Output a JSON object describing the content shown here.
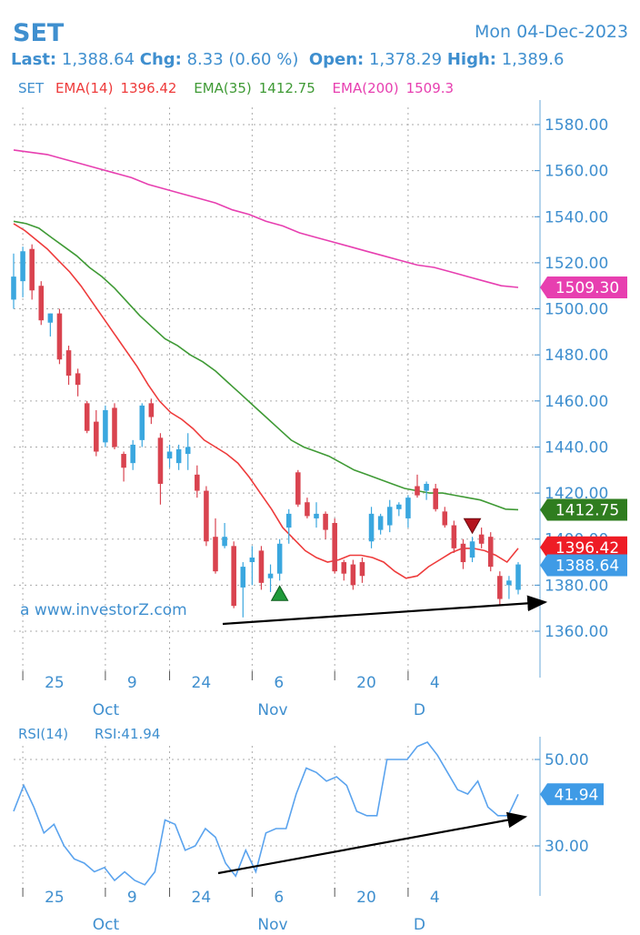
{
  "header": {
    "symbol": "SET",
    "date": "Mon 04-Dec-2023",
    "last_label": "Last:",
    "last_value": "1,388.64",
    "chg_label": "Chg:",
    "chg_value": "8.33 (0.60 %)",
    "open_label": "Open:",
    "open_value": "1,378.29",
    "high_label": "High:",
    "high_value": "1,389.6"
  },
  "legend": {
    "set": "SET",
    "ema14_label": "EMA(14)",
    "ema14_value": "1396.42",
    "ema35_label": "EMA(35)",
    "ema35_value": "1412.75",
    "ema200_label": "EMA(200)",
    "ema200_value": "1509.3"
  },
  "watermark": "a www.investorZ.com",
  "colors": {
    "up": "#3aa7df",
    "down": "#d9434f",
    "ema14": "#ee3b3b",
    "ema35": "#3f9a35",
    "ema200": "#e73fb0",
    "rsi": "#5aa3ee",
    "axis_text": "#3f8fcf",
    "arrow": "#000000"
  },
  "chart_data": [
    {
      "type": "candlestick",
      "title": "SET",
      "ylim": [
        1360,
        1580
      ],
      "yticks": [
        "1580.00",
        "1560.00",
        "1540.00",
        "1520.00",
        "1500.00",
        "1480.00",
        "1460.00",
        "1440.00",
        "1420.00",
        "1400.00",
        "1380.00",
        "1360.00"
      ],
      "xticks": [
        {
          "label": "25",
          "month": "Oct",
          "index": 1
        },
        {
          "label": "9",
          "index": 10
        },
        {
          "label": "24",
          "index": 17
        },
        {
          "label": "6",
          "month": "Nov",
          "index": 26
        },
        {
          "label": "20",
          "index": 35
        },
        {
          "label": "4",
          "month": "D",
          "index": 43
        }
      ],
      "month_labels": [
        {
          "label": "Oct",
          "index": 8
        },
        {
          "label": "Nov",
          "index": 26
        },
        {
          "label": "D",
          "index": 43
        }
      ],
      "candles": [
        {
          "o": 1504,
          "h": 1524,
          "l": 1500,
          "c": 1514
        },
        {
          "o": 1512,
          "h": 1527,
          "l": 1505,
          "c": 1525
        },
        {
          "o": 1526,
          "h": 1528,
          "l": 1504,
          "c": 1508
        },
        {
          "o": 1510,
          "h": 1512,
          "l": 1493,
          "c": 1495
        },
        {
          "o": 1494,
          "h": 1498,
          "l": 1488,
          "c": 1498
        },
        {
          "o": 1498,
          "h": 1500,
          "l": 1476,
          "c": 1478
        },
        {
          "o": 1482,
          "h": 1484,
          "l": 1467,
          "c": 1471
        },
        {
          "o": 1472,
          "h": 1474,
          "l": 1462,
          "c": 1467
        },
        {
          "o": 1459,
          "h": 1460,
          "l": 1446,
          "c": 1447
        },
        {
          "o": 1451,
          "h": 1456,
          "l": 1436,
          "c": 1438
        },
        {
          "o": 1442,
          "h": 1458,
          "l": 1440,
          "c": 1456
        },
        {
          "o": 1457,
          "h": 1459,
          "l": 1439,
          "c": 1440
        },
        {
          "o": 1437,
          "h": 1438,
          "l": 1425,
          "c": 1431
        },
        {
          "o": 1433,
          "h": 1443,
          "l": 1430,
          "c": 1441
        },
        {
          "o": 1443,
          "h": 1459,
          "l": 1440,
          "c": 1458
        },
        {
          "o": 1459,
          "h": 1461,
          "l": 1450,
          "c": 1453
        },
        {
          "o": 1444,
          "h": 1446,
          "l": 1415,
          "c": 1424
        },
        {
          "o": 1435,
          "h": 1441,
          "l": 1431,
          "c": 1438
        },
        {
          "o": 1433,
          "h": 1441,
          "l": 1430,
          "c": 1439
        },
        {
          "o": 1437,
          "h": 1446,
          "l": 1430,
          "c": 1440
        },
        {
          "o": 1428,
          "h": 1432,
          "l": 1418,
          "c": 1421
        },
        {
          "o": 1421,
          "h": 1423,
          "l": 1397,
          "c": 1399
        },
        {
          "o": 1401,
          "h": 1409,
          "l": 1385,
          "c": 1386
        },
        {
          "o": 1397,
          "h": 1407,
          "l": 1396,
          "c": 1401
        },
        {
          "o": 1397,
          "h": 1399,
          "l": 1370,
          "c": 1371
        },
        {
          "o": 1379,
          "h": 1390,
          "l": 1366,
          "c": 1388
        },
        {
          "o": 1390,
          "h": 1397,
          "l": 1380,
          "c": 1392
        },
        {
          "o": 1395,
          "h": 1397,
          "l": 1378,
          "c": 1381
        },
        {
          "o": 1383,
          "h": 1389,
          "l": 1377,
          "c": 1385
        },
        {
          "o": 1385,
          "h": 1400,
          "l": 1382,
          "c": 1398
        },
        {
          "o": 1405,
          "h": 1413,
          "l": 1398,
          "c": 1411
        },
        {
          "o": 1429,
          "h": 1430,
          "l": 1414,
          "c": 1415
        },
        {
          "o": 1416,
          "h": 1418,
          "l": 1409,
          "c": 1410
        },
        {
          "o": 1409,
          "h": 1416,
          "l": 1405,
          "c": 1411
        },
        {
          "o": 1411,
          "h": 1412,
          "l": 1400,
          "c": 1404
        },
        {
          "o": 1407,
          "h": 1409,
          "l": 1385,
          "c": 1386
        },
        {
          "o": 1390,
          "h": 1391,
          "l": 1382,
          "c": 1385
        },
        {
          "o": 1389,
          "h": 1391,
          "l": 1378,
          "c": 1380
        },
        {
          "o": 1390,
          "h": 1392,
          "l": 1381,
          "c": 1384
        },
        {
          "o": 1399,
          "h": 1414,
          "l": 1396,
          "c": 1411
        },
        {
          "o": 1404,
          "h": 1411,
          "l": 1402,
          "c": 1410
        },
        {
          "o": 1406,
          "h": 1417,
          "l": 1403,
          "c": 1414
        },
        {
          "o": 1413,
          "h": 1416,
          "l": 1410,
          "c": 1415
        },
        {
          "o": 1409,
          "h": 1419,
          "l": 1405,
          "c": 1418
        },
        {
          "o": 1423,
          "h": 1428,
          "l": 1418,
          "c": 1419
        },
        {
          "o": 1421,
          "h": 1425,
          "l": 1417,
          "c": 1424
        }
      ],
      "candles_tail": [
        {
          "o": 1422,
          "h": 1424,
          "l": 1412,
          "c": 1413
        },
        {
          "o": 1412,
          "h": 1414,
          "l": 1405,
          "c": 1406
        },
        {
          "o": 1406,
          "h": 1408,
          "l": 1394,
          "c": 1396
        },
        {
          "o": 1398,
          "h": 1400,
          "l": 1387,
          "c": 1390
        },
        {
          "o": 1392,
          "h": 1401,
          "l": 1390,
          "c": 1399
        },
        {
          "o": 1402,
          "h": 1405,
          "l": 1396,
          "c": 1398
        },
        {
          "o": 1401,
          "h": 1403,
          "l": 1386,
          "c": 1388
        },
        {
          "o": 1384,
          "h": 1386,
          "l": 1371,
          "c": 1374
        },
        {
          "o": 1380,
          "h": 1384,
          "l": 1374,
          "c": 1382
        },
        {
          "o": 1378,
          "h": 1390,
          "l": 1376,
          "c": 1389
        }
      ],
      "ema14": [
        1537,
        1534,
        1530,
        1526,
        1521,
        1516,
        1510,
        1503,
        1496,
        1489,
        1482,
        1475,
        1467,
        1460,
        1455,
        1452,
        1448,
        1443,
        1440,
        1437,
        1433,
        1427,
        1420,
        1413,
        1405,
        1400,
        1395,
        1392,
        1390,
        1391,
        1393,
        1393,
        1392,
        1390,
        1386,
        1383,
        1384,
        1388,
        1391,
        1394,
        1396,
        1396,
        1395,
        1393,
        1390,
        1396
      ],
      "ema35": [
        1538,
        1537,
        1535,
        1531,
        1527,
        1523,
        1518,
        1514,
        1509,
        1503,
        1497,
        1492,
        1487,
        1484,
        1480,
        1477,
        1473,
        1468,
        1463,
        1458,
        1453,
        1448,
        1443,
        1440,
        1438,
        1436,
        1433,
        1430,
        1428,
        1426,
        1424,
        1422,
        1421,
        1420,
        1420,
        1419,
        1418,
        1417,
        1415,
        1413,
        1412.75
      ],
      "ema200": [
        1569,
        1568,
        1567,
        1565,
        1563,
        1561,
        1559,
        1557,
        1554,
        1552,
        1550,
        1548,
        1546,
        1543,
        1541,
        1538,
        1536,
        1533,
        1531,
        1529,
        1527,
        1525,
        1523,
        1521,
        1519,
        1518,
        1516,
        1514,
        1512,
        1510,
        1509.3
      ],
      "last_labels": [
        {
          "value": "1509.30",
          "y": 1509.3,
          "color": "#e73fb0"
        },
        {
          "value": "1412.75",
          "y": 1412.75,
          "color": "#2f7d1f"
        },
        {
          "value": "1396.42",
          "y": 1396.42,
          "color": "#ee1c25"
        },
        {
          "value": "1388.64",
          "y": 1388.64,
          "color": "#3f9be6"
        }
      ],
      "markers": [
        {
          "type": "buy",
          "index": 29
        },
        {
          "type": "sell",
          "index": 50
        }
      ]
    },
    {
      "type": "line",
      "title": "RSI(14)",
      "series_label": "RSI:41.94",
      "ylim": [
        20,
        60
      ],
      "yticks": [
        "50.00",
        "30.00"
      ],
      "last_label": {
        "value": "41.94",
        "y": 41.94
      },
      "values": [
        38,
        44,
        39,
        33,
        35,
        30,
        27,
        26,
        24,
        25,
        22,
        24,
        22,
        21,
        24,
        36,
        35,
        29,
        30,
        34,
        32,
        26,
        23,
        29,
        24,
        33,
        34,
        34,
        42,
        48,
        47,
        45,
        46,
        44,
        38,
        37,
        37,
        50,
        50,
        50,
        53,
        54,
        51,
        47,
        43,
        42,
        45,
        39,
        37,
        37,
        41.94
      ],
      "xticks": [
        "25",
        "9",
        "24",
        "6",
        "20",
        "4"
      ],
      "months": [
        "Oct",
        "Nov",
        "D"
      ]
    }
  ]
}
